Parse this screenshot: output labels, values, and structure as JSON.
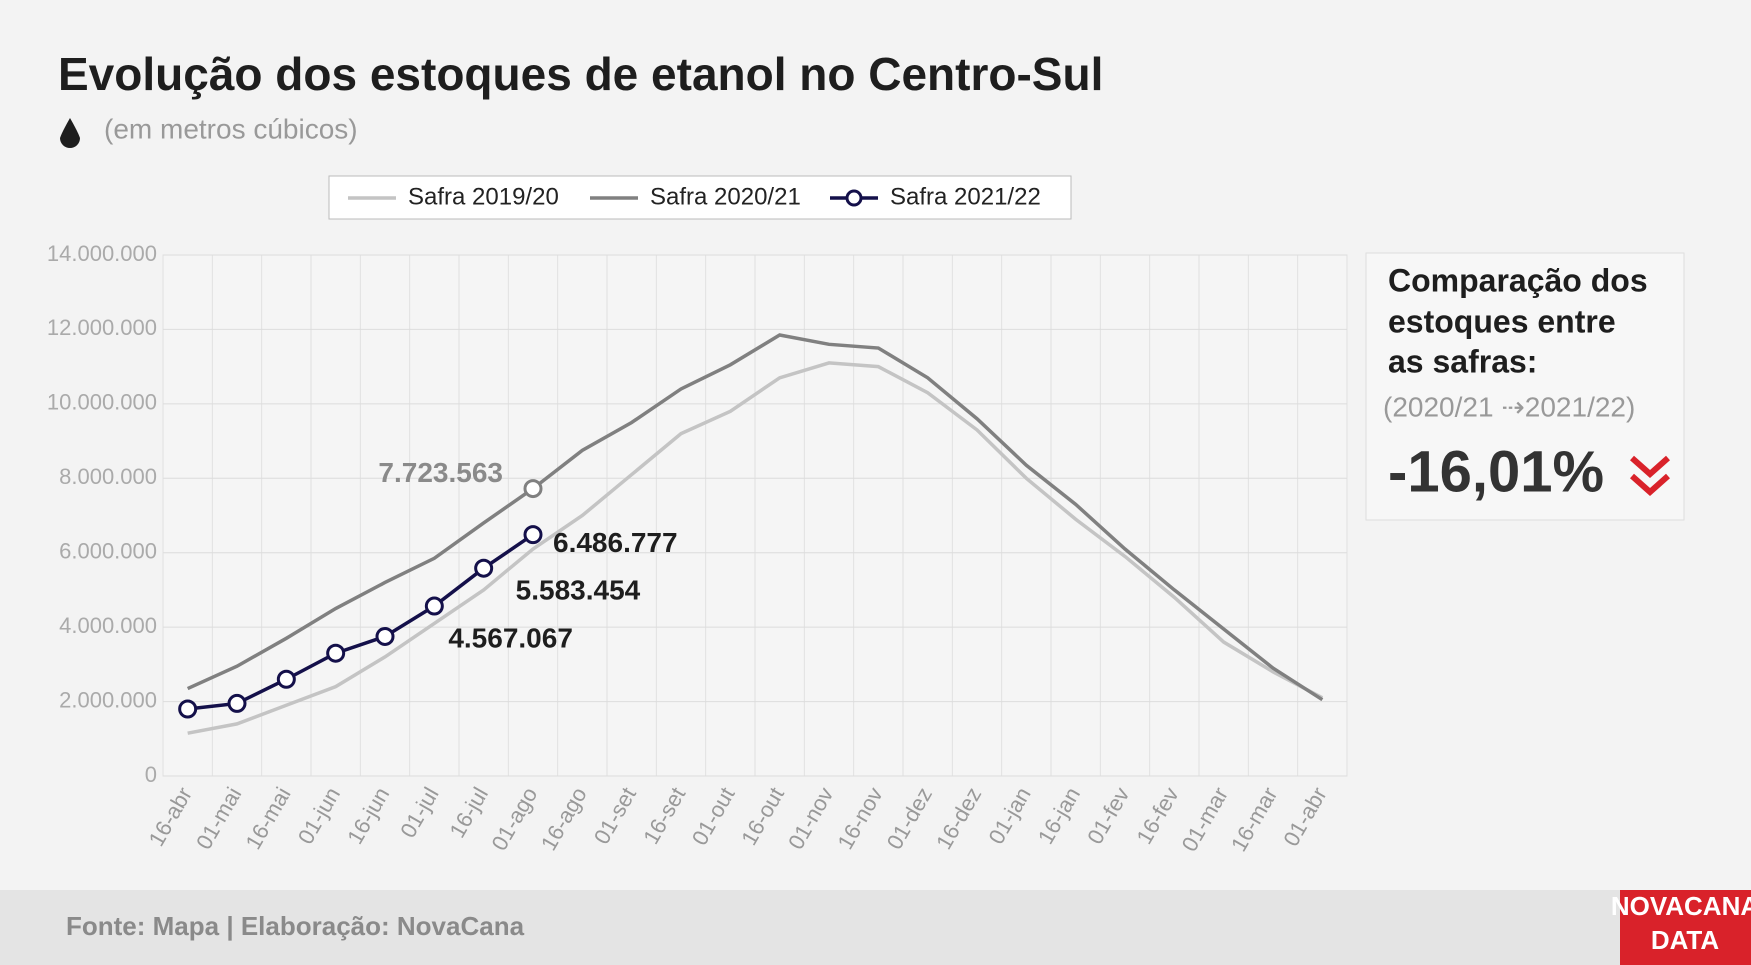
{
  "chart_data": {
    "type": "line",
    "title": "Evolução dos estoques de etanol no Centro-Sul",
    "subtitle": "(em metros cúbicos)",
    "categories": [
      "16-abr",
      "01-mai",
      "16-mai",
      "01-jun",
      "16-jun",
      "01-jul",
      "16-jul",
      "01-ago",
      "16-ago",
      "01-set",
      "16-set",
      "01-out",
      "16-out",
      "01-nov",
      "16-nov",
      "01-dez",
      "16-dez",
      "01-jan",
      "16-jan",
      "01-fev",
      "16-fev",
      "01-mar",
      "16-mar",
      "01-abr"
    ],
    "series": [
      {
        "name": "Safra 2019/20",
        "color": "#c4c4c4",
        "values": [
          1150000,
          1400000,
          1900000,
          2400000,
          3200000,
          4100000,
          5000000,
          6100000,
          7000000,
          8100000,
          9200000,
          9800000,
          10700000,
          11100000,
          11000000,
          10300000,
          9300000,
          8000000,
          6900000,
          5900000,
          4800000,
          3600000,
          2800000,
          2100000
        ]
      },
      {
        "name": "Safra 2020/21",
        "color": "#808080",
        "values": [
          2350000,
          2950000,
          3700000,
          4500000,
          5200000,
          5850000,
          6800000,
          7723563,
          8750000,
          9500000,
          10400000,
          11050000,
          11850000,
          11600000,
          11500000,
          10700000,
          9600000,
          8350000,
          7300000,
          6100000,
          5000000,
          3950000,
          2900000,
          2050000
        ],
        "value_labels": [
          null,
          null,
          null,
          null,
          null,
          null,
          null,
          "7.723.563",
          null,
          null,
          null,
          null,
          null,
          null,
          null,
          null,
          null,
          null,
          null,
          null,
          null,
          null,
          null,
          null
        ]
      },
      {
        "name": "Safra 2021/22",
        "color": "#14104a",
        "markers": true,
        "values": [
          1800000,
          1950000,
          2600000,
          3300000,
          3750000,
          4567067,
          5583454,
          6486777,
          null,
          null,
          null,
          null,
          null,
          null,
          null,
          null,
          null,
          null,
          null,
          null,
          null,
          null,
          null,
          null
        ],
        "value_labels": [
          null,
          null,
          null,
          null,
          null,
          "4.567.067",
          "5.583.454",
          "6.486.777",
          null,
          null,
          null,
          null,
          null,
          null,
          null,
          null,
          null,
          null,
          null,
          null,
          null,
          null,
          null,
          null
        ]
      }
    ],
    "ylim": [
      0,
      14000000
    ],
    "yticks": [
      0,
      {
        "value": 2000000,
        "label": "2.000.000"
      },
      {
        "value": 4000000,
        "label": "4.000.000"
      },
      {
        "value": 6000000,
        "label": "6.000.000"
      },
      {
        "value": 8000000,
        "label": "8.000.000"
      },
      {
        "value": 10000000,
        "label": "10.000.000"
      },
      {
        "value": 12000000,
        "label": "12.000.000"
      },
      {
        "value": 14000000,
        "label": "14.000.000"
      }
    ],
    "grid": true,
    "legend": "top"
  },
  "panel": {
    "title_lines": [
      "Comparação dos",
      "estoques entre",
      "as safras:"
    ],
    "period": "(2020/21 ⇢2021/22)",
    "change": "-16,01%"
  },
  "footer": {
    "source": "Fonte: Mapa | Elaboração: NovaCana",
    "logo": [
      "NOVACANA",
      "DATA"
    ]
  }
}
